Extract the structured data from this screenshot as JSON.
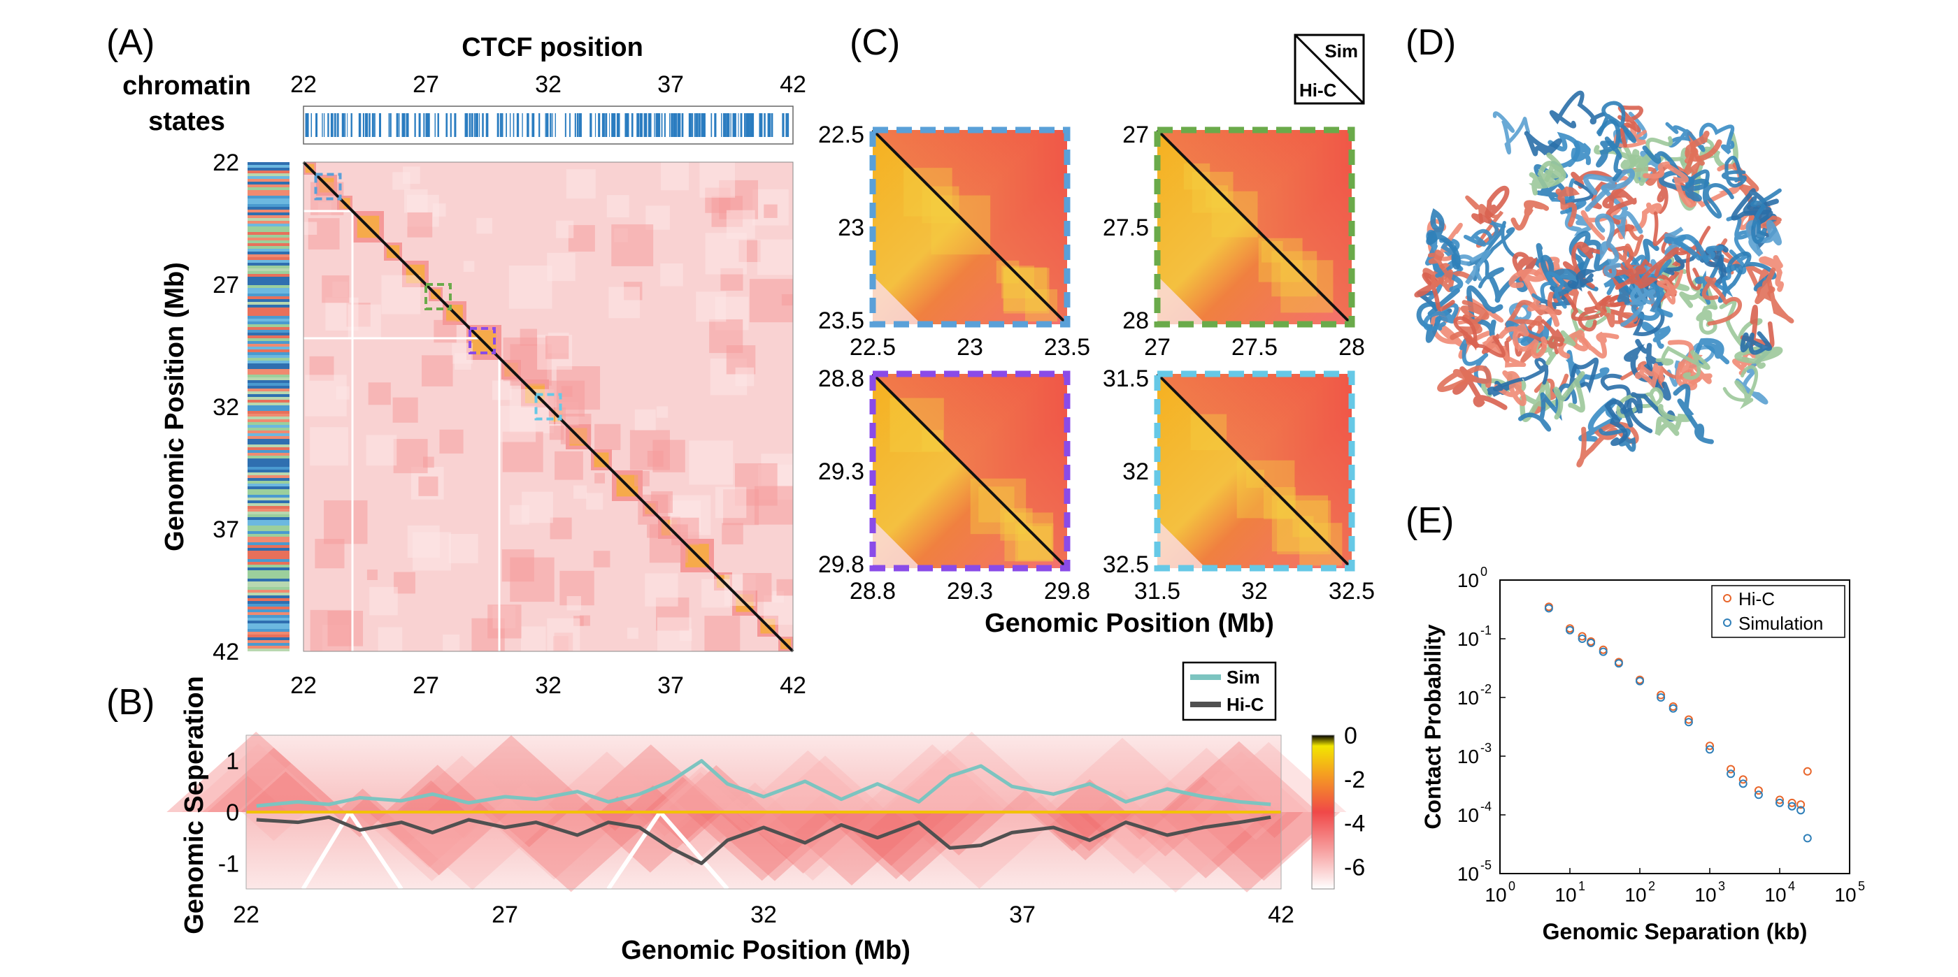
{
  "panels": {
    "A": "(A)",
    "B": "(B)",
    "C": "(C)",
    "D": "(D)",
    "E": "(E)"
  },
  "colors": {
    "sim": "#7cc4c0",
    "hic": "#505050",
    "orange": "#e8652a",
    "blue": "#2f7fb8",
    "ctcf": "#2a7cc0",
    "diag": "#111111"
  },
  "chart_data": [
    {
      "id": "A",
      "type": "heatmap",
      "title": "CTCF position",
      "side_label": [
        "chromatin",
        "states"
      ],
      "xticks": [
        "22",
        "27",
        "32",
        "37",
        "42"
      ],
      "yticks": [
        "22",
        "27",
        "32",
        "37",
        "42"
      ],
      "ylabel": "Genomic Position (Mb)",
      "xlim": [
        22,
        42
      ],
      "ylim": [
        22,
        42
      ],
      "zoom_boxes": [
        {
          "start": 22.5,
          "end": 23.5,
          "color": "#5aa0d8"
        },
        {
          "start": 27,
          "end": 28,
          "color": "#6aaa4a"
        },
        {
          "start": 28.8,
          "end": 29.8,
          "color": "#8a4be8"
        },
        {
          "start": 31.5,
          "end": 32.5,
          "color": "#66c8e6"
        }
      ]
    },
    {
      "id": "B",
      "type": "heatmap",
      "xlabel": "Genomic Position (Mb)",
      "ylabel": "Genomic Seperation",
      "xticks": [
        "22",
        "27",
        "32",
        "37",
        "42"
      ],
      "yticks": [
        "1",
        "0",
        "-1"
      ],
      "xlim": [
        22,
        42
      ],
      "ylim": [
        -1.5,
        1.5
      ],
      "colorbar_ticks": [
        "0",
        "-2",
        "-4",
        "-6"
      ],
      "colorbar_range": [
        -7,
        0
      ],
      "legend": [
        "Sim",
        "Hi-C"
      ],
      "series": [
        {
          "name": "Sim",
          "x": [
            22.2,
            23.0,
            23.6,
            24.2,
            25.0,
            25.6,
            26.3,
            27.0,
            27.6,
            28.4,
            29.0,
            29.6,
            30.2,
            30.8,
            31.3,
            32.0,
            32.8,
            33.5,
            34.2,
            35.0,
            35.6,
            36.2,
            36.8,
            37.6,
            38.3,
            39.0,
            39.8,
            40.5,
            41.2,
            41.8
          ],
          "values": [
            0.12,
            0.2,
            0.15,
            0.28,
            0.22,
            0.35,
            0.18,
            0.3,
            0.25,
            0.4,
            0.2,
            0.35,
            0.6,
            1.0,
            0.55,
            0.3,
            0.6,
            0.25,
            0.55,
            0.2,
            0.7,
            0.9,
            0.5,
            0.35,
            0.55,
            0.2,
            0.45,
            0.3,
            0.2,
            0.15
          ]
        },
        {
          "name": "Hi-C",
          "x": [
            22.2,
            23.0,
            23.6,
            24.2,
            25.0,
            25.6,
            26.3,
            27.0,
            27.6,
            28.4,
            29.0,
            29.6,
            30.2,
            30.8,
            31.3,
            32.0,
            32.8,
            33.5,
            34.2,
            35.0,
            35.6,
            36.2,
            36.8,
            37.6,
            38.3,
            39.0,
            39.8,
            40.5,
            41.2,
            41.8
          ],
          "values": [
            -0.15,
            -0.2,
            -0.1,
            -0.35,
            -0.2,
            -0.4,
            -0.15,
            -0.3,
            -0.2,
            -0.45,
            -0.2,
            -0.3,
            -0.7,
            -1.0,
            -0.55,
            -0.3,
            -0.6,
            -0.25,
            -0.5,
            -0.2,
            -0.7,
            -0.65,
            -0.4,
            -0.3,
            -0.55,
            -0.2,
            -0.45,
            -0.3,
            -0.2,
            -0.1
          ]
        }
      ]
    },
    {
      "id": "C",
      "type": "heatmap",
      "xlabel": "Genomic Position (Mb)",
      "legend_upper": "Sim",
      "legend_lower": "Hi-C",
      "subplots": [
        {
          "yticks": [
            "22.5",
            "23",
            "23.5"
          ],
          "xticks": [
            "22.5",
            "23",
            "23.5"
          ],
          "color": "#5aa0d8"
        },
        {
          "yticks": [
            "27",
            "27.5",
            "28"
          ],
          "xticks": [
            "27",
            "27.5",
            "28"
          ],
          "color": "#6aaa4a"
        },
        {
          "yticks": [
            "28.8",
            "29.3",
            "29.8"
          ],
          "xticks": [
            "28.8",
            "29.3",
            "29.8"
          ],
          "color": "#8a4be8"
        },
        {
          "yticks": [
            "31.5",
            "32",
            "32.5"
          ],
          "xticks": [
            "31.5",
            "32",
            "32.5"
          ],
          "color": "#66c8e6"
        }
      ]
    },
    {
      "id": "E",
      "type": "scatter",
      "xlabel": "Genomic Separation (kb)",
      "ylabel": "Contact Probability",
      "xscale": "log",
      "yscale": "log",
      "xlim": [
        1,
        100000
      ],
      "ylim": [
        1e-05,
        1
      ],
      "xticks": [
        "10",
        "10",
        "10",
        "10",
        "10",
        "10"
      ],
      "xtick_exps": [
        "0",
        "1",
        "2",
        "3",
        "4",
        "5"
      ],
      "yticks": [
        "10",
        "10",
        "10",
        "10",
        "10",
        "10"
      ],
      "ytick_exps": [
        "0",
        "-1",
        "-2",
        "-3",
        "-4",
        "-5"
      ],
      "legend_position": "top-right",
      "series": [
        {
          "name": "Hi-C",
          "color": "#e8652a",
          "x": [
            5,
            10,
            15,
            20,
            30,
            50,
            100,
            200,
            300,
            500,
            1000,
            2000,
            3000,
            5000,
            10000,
            15000,
            20000,
            25000
          ],
          "values": [
            0.35,
            0.15,
            0.11,
            0.09,
            0.065,
            0.04,
            0.02,
            0.011,
            0.007,
            0.0042,
            0.0015,
            0.0006,
            0.0004,
            0.00026,
            0.00018,
            0.00016,
            0.00015,
            0.00055
          ]
        },
        {
          "name": "Simulation",
          "color": "#2f7fb8",
          "x": [
            5,
            10,
            15,
            20,
            30,
            50,
            100,
            200,
            300,
            500,
            1000,
            2000,
            3000,
            5000,
            10000,
            15000,
            20000,
            25000
          ],
          "values": [
            0.33,
            0.14,
            0.1,
            0.085,
            0.06,
            0.038,
            0.019,
            0.01,
            0.0065,
            0.0038,
            0.0013,
            0.0005,
            0.00034,
            0.00022,
            0.00016,
            0.00014,
            0.00012,
            4e-05
          ]
        }
      ]
    }
  ]
}
